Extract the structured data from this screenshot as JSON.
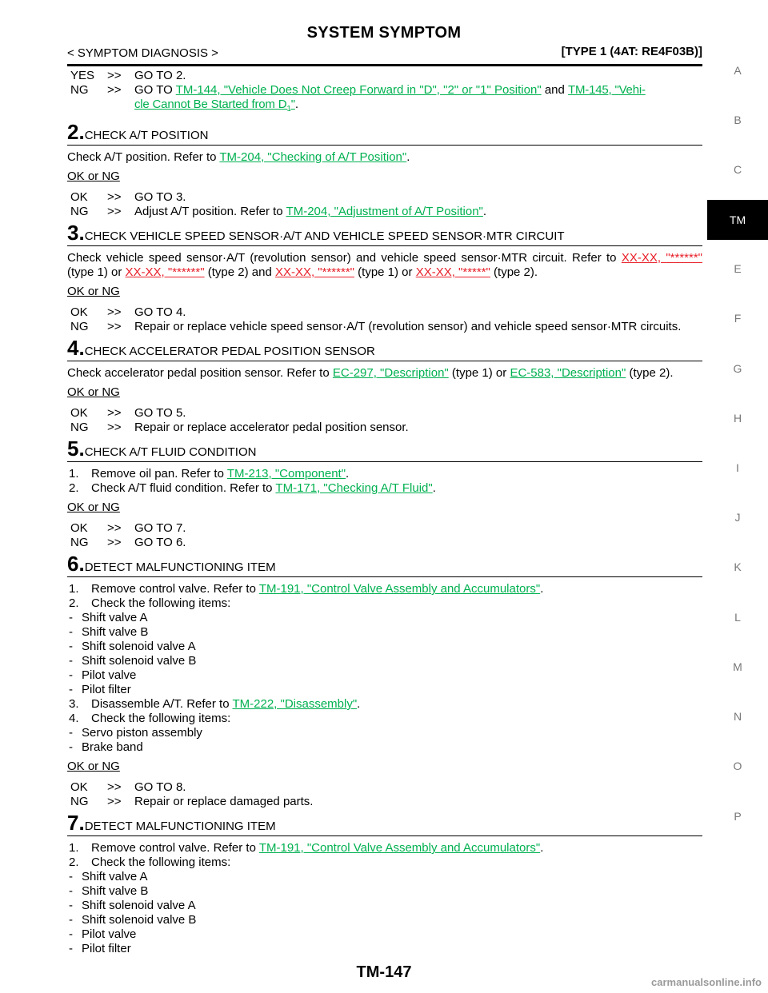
{
  "header": {
    "title": "SYSTEM SYMPTOM",
    "section": "< SYMPTOM DIAGNOSIS >",
    "type": "[TYPE 1 (4AT: RE4F03B)]"
  },
  "top_responses": {
    "yes_code": "YES",
    "arrow": ">>",
    "yes_text": "GO TO 2.",
    "ng_code": "NG",
    "ng_prefix": "GO TO",
    "ng_link1": "TM-144, \"Vehicle Does Not Creep Forward in \"D\", \"2\" or \"1\" Position\"",
    "ng_and": "and",
    "ng_link2a": "TM-145, \"Vehi-",
    "ng_link2b": "cle Cannot Be Started from D",
    "ng_link2_sub": "1",
    "ng_link2_end": "\"",
    "period": "."
  },
  "step2": {
    "num": "2",
    "title": "CHECK A/T POSITION",
    "text": "Check A/T position. Refer to",
    "link": "TM-204, \"Checking of A/T Position\"",
    "after": ".",
    "oknig": "OK or NG",
    "ok_code": "OK",
    "ok_text": "GO TO 3.",
    "ng_code": "NG",
    "ng_text": "Adjust A/T position. Refer to",
    "ng_link": "TM-204, \"Adjustment of A/T Position\"",
    "ng_after": "."
  },
  "step3": {
    "num": "3",
    "title": "CHECK VEHICLE SPEED SENSOR·A/T AND VEHICLE SPEED SENSOR·MTR CIRCUIT",
    "text": "Check vehicle speed sensor·A/T (revolution sensor) and vehicle speed sensor·MTR circuit. Refer to",
    "link1a": "XX-XX,",
    "link1b": "\"******\"",
    "t1": "(type 1) or",
    "link2": "XX-XX, \"******\"",
    "t2": "(type 2) and",
    "link3": "XX-XX, \"******\"",
    "t3": "(type 1) or",
    "link4": "XX-XX, \"*****\"",
    "t4": "(type 2).",
    "oknig": "OK or NG",
    "ok_code": "OK",
    "ok_text": "GO TO 4.",
    "ng_code": "NG",
    "ng_text": "Repair or replace vehicle speed sensor·A/T (revolution sensor) and vehicle speed sensor·MTR circuits."
  },
  "step4": {
    "num": "4",
    "title": "CHECK ACCELERATOR PEDAL POSITION SENSOR",
    "text": "Check accelerator pedal position sensor. Refer to",
    "link1": "EC-297, \"Description\"",
    "t1": "(type 1) or",
    "link2": "EC-583, \"Description\"",
    "t2": "(type 2).",
    "oknig": "OK or NG",
    "ok_code": "OK",
    "ok_text": "GO TO 5.",
    "ng_code": "NG",
    "ng_text": "Repair or replace accelerator pedal position sensor."
  },
  "step5": {
    "num": "5",
    "title": "CHECK A/T FLUID CONDITION",
    "i1_num": "1.",
    "i1_text": "Remove oil pan. Refer to",
    "i1_link": "TM-213, \"Component\"",
    "i2_num": "2.",
    "i2_text": "Check A/T fluid condition. Refer to",
    "i2_link": "TM-171, \"Checking A/T Fluid\"",
    "oknig": "OK or NG",
    "ok_code": "OK",
    "ok_text": "GO TO 7.",
    "ng_code": "NG",
    "ng_text": "GO TO 6."
  },
  "step6": {
    "num": "6",
    "title": "DETECT MALFUNCTIONING ITEM",
    "i1_num": "1.",
    "i1_text": "Remove control valve. Refer to",
    "i1_link": "TM-191, \"Control Valve Assembly and Accumulators\"",
    "i2_num": "2.",
    "i2_text": "Check the following items:",
    "list_a": [
      "Shift valve A",
      "Shift valve B",
      "Shift solenoid valve A",
      "Shift solenoid valve B",
      "Pilot valve",
      "Pilot filter"
    ],
    "i3_num": "3.",
    "i3_text": "Disassemble A/T. Refer to",
    "i3_link": "TM-222, \"Disassembly\"",
    "i4_num": "4.",
    "i4_text": "Check the following items:",
    "list_b": [
      "Servo piston assembly",
      "Brake band"
    ],
    "oknig": "OK or NG",
    "ok_code": "OK",
    "ok_text": "GO TO 8.",
    "ng_code": "NG",
    "ng_text": "Repair or replace damaged parts."
  },
  "step7": {
    "num": "7",
    "title": "DETECT MALFUNCTIONING ITEM",
    "i1_num": "1.",
    "i1_text": "Remove control valve. Refer to",
    "i1_link": "TM-191, \"Control Valve Assembly and Accumulators\"",
    "i2_num": "2.",
    "i2_text": "Check the following items:",
    "list": [
      "Shift valve A",
      "Shift valve B",
      "Shift solenoid valve A",
      "Shift solenoid valve B",
      "Pilot valve",
      "Pilot filter"
    ]
  },
  "dash": "-",
  "dot": ".",
  "arrow": ">>",
  "footer": "TM-147",
  "watermark": "carmanualsonline.info",
  "tabs": [
    "A",
    "B",
    "C",
    "TM",
    "E",
    "F",
    "G",
    "H",
    "I",
    "J",
    "K",
    "L",
    "M",
    "N",
    "O",
    "P"
  ],
  "active_tab": "TM"
}
